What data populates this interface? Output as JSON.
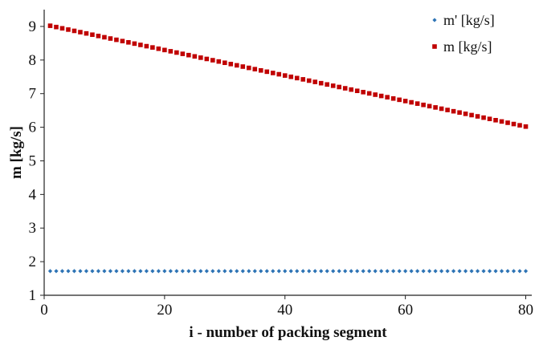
{
  "chart_data": {
    "type": "scatter",
    "xlabel": "i - number of packing segment",
    "ylabel": "m [kg/s]",
    "xlim": [
      0,
      81
    ],
    "ylim": [
      1,
      9.5
    ],
    "x_ticks": [
      0,
      20,
      40,
      60,
      80
    ],
    "y_ticks": [
      1,
      2,
      3,
      4,
      5,
      6,
      7,
      8,
      9
    ],
    "grid": false,
    "legend_position": "top-right",
    "series": [
      {
        "name": "m' [kg/s]",
        "color": "#2e74b5",
        "marker": "diamond",
        "x_start": 1,
        "x_end": 80,
        "x_step": 1,
        "y_start": 1.72,
        "y_end": 1.72
      },
      {
        "name": "m [kg/s]",
        "color": "#c00000",
        "marker": "square",
        "x_start": 1,
        "x_end": 80,
        "x_step": 1,
        "y_start": 9.02,
        "y_end": 6.02
      }
    ]
  }
}
